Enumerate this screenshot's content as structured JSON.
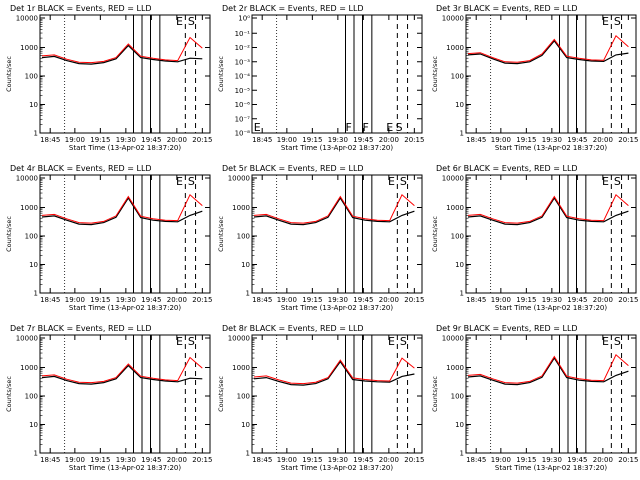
{
  "chart_data": [
    {
      "type": "line",
      "title": "Det 1r BLACK = Events, RED = LLD",
      "xlabel": "Start Time (13-Apr-02 18:37:20)",
      "ylabel": "Counts/sec",
      "x_tick_labels": [
        "18:45",
        "19:00",
        "19:15",
        "19:30",
        "19:45",
        "20:00",
        "20:15"
      ],
      "y_tick_labels": [
        "1",
        "10",
        "100",
        "1000",
        "10000"
      ],
      "yscale": "log",
      "ylim": [
        1,
        15000
      ],
      "flags": [
        "E",
        "S"
      ],
      "series": [
        {
          "name": "BLACK = Events",
          "color": "#000000",
          "values": [
            420,
            460,
            330,
            260,
            250,
            280,
            380,
            1100,
            420,
            360,
            320,
            300,
            400,
            380
          ]
        },
        {
          "name": "RED = LLD",
          "color": "#ff0000",
          "values": [
            480,
            520,
            370,
            290,
            280,
            310,
            420,
            1250,
            470,
            400,
            350,
            330,
            2100,
            900
          ]
        }
      ]
    },
    {
      "type": "line",
      "title": "Det 2r BLACK = Events, RED = LLD",
      "xlabel": "Start Time (13-Apr-02 18:37:20)",
      "ylabel": "Counts/sec",
      "x_tick_labels": [
        "18:45",
        "19:00",
        "19:15",
        "19:30",
        "19:45",
        "20:00",
        "20:15"
      ],
      "y_tick_labels": [
        "10⁻⁸",
        "10⁻⁷",
        "10⁻⁶",
        "10⁻⁵",
        "10⁻⁴",
        "10⁻³",
        "10⁻²",
        "10⁻¹",
        "10⁰"
      ],
      "yscale": "log",
      "flags": [
        "E",
        "F",
        "F",
        "E",
        "S"
      ],
      "series": []
    },
    {
      "type": "line",
      "title": "Det 3r BLACK = Events, RED = LLD",
      "xlabel": "Start Time (13-Apr-02 18:37:20)",
      "ylabel": "Counts/sec",
      "x_tick_labels": [
        "18:45",
        "19:00",
        "19:15",
        "19:30",
        "19:45",
        "20:00",
        "20:15"
      ],
      "y_tick_labels": [
        "1",
        "10",
        "100",
        "1000",
        "10000"
      ],
      "yscale": "log",
      "ylim": [
        1,
        15000
      ],
      "flags": [
        "E",
        "S"
      ],
      "series": [
        {
          "name": "BLACK = Events",
          "color": "#000000",
          "values": [
            520,
            560,
            380,
            270,
            260,
            300,
            500,
            1600,
            420,
            360,
            320,
            310,
            520,
            600
          ]
        },
        {
          "name": "RED = LLD",
          "color": "#ff0000",
          "values": [
            580,
            620,
            420,
            300,
            290,
            330,
            560,
            1800,
            470,
            400,
            350,
            340,
            2400,
            1000
          ]
        }
      ]
    },
    {
      "type": "line",
      "title": "Det 4r BLACK = Events, RED = LLD",
      "xlabel": "Start Time (13-Apr-02 18:37:20)",
      "ylabel": "Counts/sec",
      "x_tick_labels": [
        "18:45",
        "19:00",
        "19:15",
        "19:30",
        "19:45",
        "20:00",
        "20:15"
      ],
      "y_tick_labels": [
        "1",
        "10",
        "100",
        "1000",
        "10000"
      ],
      "yscale": "log",
      "ylim": [
        1,
        15000
      ],
      "flags": [
        "E",
        "S"
      ],
      "series": [
        {
          "name": "BLACK = Events",
          "color": "#000000",
          "values": [
            440,
            480,
            340,
            250,
            240,
            280,
            430,
            2000,
            420,
            340,
            310,
            300,
            500,
            700
          ]
        },
        {
          "name": "RED = LLD",
          "color": "#ff0000",
          "values": [
            500,
            540,
            380,
            280,
            270,
            310,
            480,
            2250,
            470,
            380,
            340,
            330,
            2600,
            1100
          ]
        }
      ]
    },
    {
      "type": "line",
      "title": "Det 5r BLACK = Events, RED = LLD",
      "xlabel": "Start Time (13-Apr-02 18:37:20)",
      "ylabel": "Counts/sec",
      "x_tick_labels": [
        "18:45",
        "19:00",
        "19:15",
        "19:30",
        "19:45",
        "20:00",
        "20:15"
      ],
      "y_tick_labels": [
        "1",
        "10",
        "100",
        "1000",
        "10000"
      ],
      "yscale": "log",
      "ylim": [
        1,
        15000
      ],
      "flags": [
        "E",
        "S"
      ],
      "series": [
        {
          "name": "BLACK = Events",
          "color": "#000000",
          "values": [
            440,
            480,
            340,
            250,
            240,
            280,
            430,
            2000,
            420,
            340,
            310,
            300,
            500,
            700
          ]
        },
        {
          "name": "RED = LLD",
          "color": "#ff0000",
          "values": [
            500,
            540,
            380,
            280,
            270,
            310,
            480,
            2250,
            470,
            380,
            340,
            330,
            2600,
            1100
          ]
        }
      ]
    },
    {
      "type": "line",
      "title": "Det 6r BLACK = Events, RED = LLD",
      "xlabel": "Start Time (13-Apr-02 18:37:20)",
      "ylabel": "Counts/sec",
      "x_tick_labels": [
        "18:45",
        "19:00",
        "19:15",
        "19:30",
        "19:45",
        "20:00",
        "20:15"
      ],
      "y_tick_labels": [
        "1",
        "10",
        "100",
        "1000",
        "10000"
      ],
      "yscale": "log",
      "ylim": [
        1,
        15000
      ],
      "flags": [
        "E",
        "S"
      ],
      "series": [
        {
          "name": "BLACK = Events",
          "color": "#000000",
          "values": [
            440,
            480,
            340,
            250,
            240,
            280,
            430,
            2000,
            420,
            340,
            310,
            300,
            500,
            700
          ]
        },
        {
          "name": "RED = LLD",
          "color": "#ff0000",
          "values": [
            500,
            540,
            380,
            280,
            270,
            310,
            480,
            2250,
            470,
            380,
            340,
            330,
            2600,
            1100
          ]
        }
      ]
    },
    {
      "type": "line",
      "title": "Det 7r BLACK = Events, RED = LLD",
      "xlabel": "Start Time (13-Apr-02 18:37:20)",
      "ylabel": "Counts/sec",
      "x_tick_labels": [
        "18:45",
        "19:00",
        "19:15",
        "19:30",
        "19:45",
        "20:00",
        "20:15"
      ],
      "y_tick_labels": [
        "1",
        "10",
        "100",
        "1000",
        "10000"
      ],
      "yscale": "log",
      "ylim": [
        1,
        15000
      ],
      "flags": [
        "E",
        "S"
      ],
      "series": [
        {
          "name": "BLACK = Events",
          "color": "#000000",
          "values": [
            420,
            460,
            330,
            260,
            250,
            280,
            380,
            1100,
            420,
            360,
            320,
            300,
            400,
            380
          ]
        },
        {
          "name": "RED = LLD",
          "color": "#ff0000",
          "values": [
            480,
            520,
            370,
            290,
            280,
            310,
            420,
            1250,
            470,
            400,
            350,
            330,
            2100,
            900
          ]
        }
      ]
    },
    {
      "type": "line",
      "title": "Det 8r BLACK = Events, RED = LLD",
      "xlabel": "Start Time (13-Apr-02 18:37:20)",
      "ylabel": "Counts/sec",
      "x_tick_labels": [
        "18:45",
        "19:00",
        "19:15",
        "19:30",
        "19:45",
        "20:00",
        "20:15"
      ],
      "y_tick_labels": [
        "1",
        "10",
        "100",
        "1000",
        "10000"
      ],
      "yscale": "log",
      "ylim": [
        1,
        15000
      ],
      "flags": [
        "E",
        "S"
      ],
      "series": [
        {
          "name": "BLACK = Events",
          "color": "#000000",
          "values": [
            380,
            420,
            310,
            240,
            230,
            260,
            380,
            1500,
            360,
            320,
            300,
            290,
            460,
            560
          ]
        },
        {
          "name": "RED = LLD",
          "color": "#ff0000",
          "values": [
            440,
            480,
            350,
            270,
            260,
            290,
            420,
            1700,
            410,
            360,
            330,
            320,
            2000,
            900
          ]
        }
      ]
    },
    {
      "type": "line",
      "title": "Det 9r BLACK = Events, RED = LLD",
      "xlabel": "Start Time (13-Apr-02 18:37:20)",
      "ylabel": "Counts/sec",
      "x_tick_labels": [
        "18:45",
        "19:00",
        "19:15",
        "19:30",
        "19:45",
        "20:00",
        "20:15"
      ],
      "y_tick_labels": [
        "1",
        "10",
        "100",
        "1000",
        "10000"
      ],
      "yscale": "log",
      "ylim": [
        1,
        15000
      ],
      "flags": [
        "E",
        "S"
      ],
      "series": [
        {
          "name": "BLACK = Events",
          "color": "#000000",
          "values": [
            440,
            480,
            340,
            250,
            240,
            280,
            430,
            2000,
            420,
            340,
            310,
            300,
            500,
            700
          ]
        },
        {
          "name": "RED = LLD",
          "color": "#ff0000",
          "values": [
            500,
            540,
            380,
            280,
            270,
            310,
            480,
            2250,
            470,
            380,
            340,
            330,
            2600,
            1100
          ]
        }
      ]
    }
  ]
}
